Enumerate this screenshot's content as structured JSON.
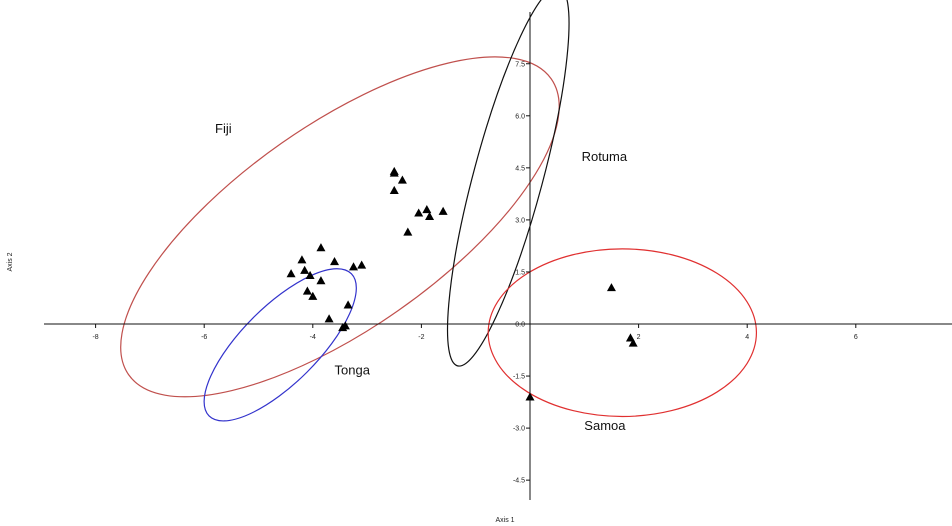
{
  "chart_data": {
    "type": "scatter",
    "xlabel": "Axis 1",
    "ylabel": "Axis 2",
    "xlim": [
      -9,
      7.8
    ],
    "ylim": [
      -5,
      9
    ],
    "grid": false,
    "x_ticks": [
      {
        "value": -8,
        "label": "-8"
      },
      {
        "value": -6,
        "label": "-6"
      },
      {
        "value": -4,
        "label": "-4"
      },
      {
        "value": -2,
        "label": "-2"
      },
      {
        "value": 2,
        "label": "2"
      },
      {
        "value": 4,
        "label": "4"
      },
      {
        "value": 6,
        "label": "6"
      }
    ],
    "y_ticks": [
      {
        "value": 7.5,
        "label": "7.5"
      },
      {
        "value": 6.0,
        "label": "6.0"
      },
      {
        "value": 4.5,
        "label": "4.5"
      },
      {
        "value": 3.0,
        "label": "3.0"
      },
      {
        "value": 1.5,
        "label": "1.5"
      },
      {
        "value": 0.0,
        "label": "0.0"
      },
      {
        "value": -1.5,
        "label": "-1.5"
      },
      {
        "value": -3.0,
        "label": "-3.0"
      },
      {
        "value": -4.5,
        "label": "-4.5"
      }
    ],
    "points": [
      {
        "x": -2.5,
        "y": 4.4
      },
      {
        "x": -2.5,
        "y": 4.35
      },
      {
        "x": -2.35,
        "y": 4.15
      },
      {
        "x": -2.5,
        "y": 3.85
      },
      {
        "x": -1.9,
        "y": 3.3
      },
      {
        "x": -1.6,
        "y": 3.25
      },
      {
        "x": -1.85,
        "y": 3.1
      },
      {
        "x": -2.05,
        "y": 3.2
      },
      {
        "x": -2.25,
        "y": 2.65
      },
      {
        "x": -3.85,
        "y": 2.2
      },
      {
        "x": -4.2,
        "y": 1.85
      },
      {
        "x": -3.6,
        "y": 1.8
      },
      {
        "x": -3.1,
        "y": 1.7
      },
      {
        "x": -3.25,
        "y": 1.65
      },
      {
        "x": -4.15,
        "y": 1.55
      },
      {
        "x": -4.4,
        "y": 1.45
      },
      {
        "x": -4.05,
        "y": 1.4
      },
      {
        "x": -3.85,
        "y": 1.25
      },
      {
        "x": -4.1,
        "y": 0.95
      },
      {
        "x": -4.0,
        "y": 0.8
      },
      {
        "x": -3.35,
        "y": 0.55
      },
      {
        "x": -3.7,
        "y": 0.15
      },
      {
        "x": -3.4,
        "y": -0.05
      },
      {
        "x": -3.45,
        "y": -0.1
      },
      {
        "x": 1.5,
        "y": 1.05
      },
      {
        "x": 1.85,
        "y": -0.4
      },
      {
        "x": 1.9,
        "y": -0.55
      },
      {
        "x": 0.0,
        "y": -2.1
      }
    ],
    "ellipses": [
      {
        "label": "Fiji",
        "color": "#c0504d",
        "cx": -3.5,
        "cy": 2.8,
        "rx": 5.0,
        "ry": 2.8,
        "angle_deg": 35,
        "label_x": -5.8,
        "label_y": 5.5
      },
      {
        "label": "Tonga",
        "color": "#3333cc",
        "cx": -4.6,
        "cy": -0.6,
        "rx": 1.95,
        "ry": 1.05,
        "angle_deg": 45,
        "label_x": -3.6,
        "label_y": -1.45
      },
      {
        "label": "Rotuma",
        "color": "#111111",
        "cx": -0.4,
        "cy": 4.25,
        "rx": 3.8,
        "ry": 0.95,
        "angle_deg": 75,
        "label_x": 0.95,
        "label_y": 4.7
      },
      {
        "label": "Samoa",
        "color": "#e03030",
        "cx": 1.7,
        "cy": -0.25,
        "rx": 2.6,
        "ry": 2.3,
        "angle_deg": 0,
        "label_x": 1.0,
        "label_y": -3.05
      }
    ]
  }
}
